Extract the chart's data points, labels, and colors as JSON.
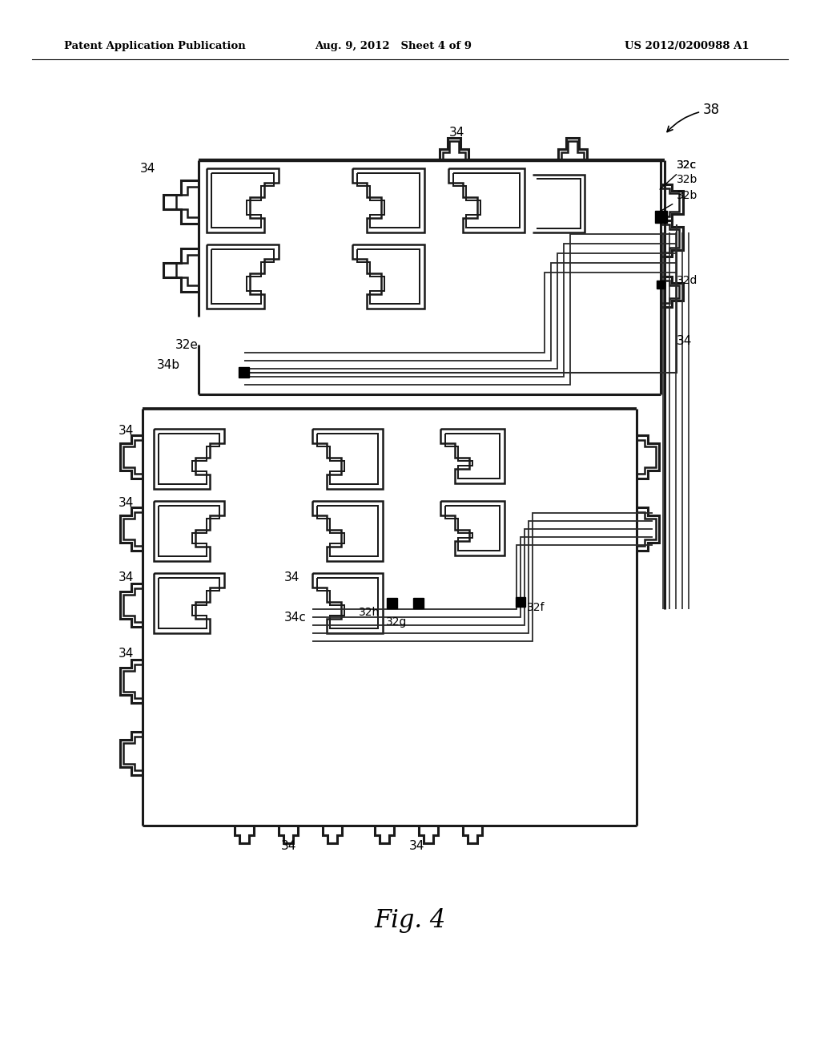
{
  "bg_color": "#ffffff",
  "header_left": "Patent Application Publication",
  "header_mid": "Aug. 9, 2012   Sheet 4 of 9",
  "header_right": "US 2012/0200988 A1",
  "figure_label": "Fig. 4",
  "line_color": "#1a1a1a",
  "lw_main": 2.2,
  "lw_inner": 1.8,
  "lw_trace": 1.5
}
